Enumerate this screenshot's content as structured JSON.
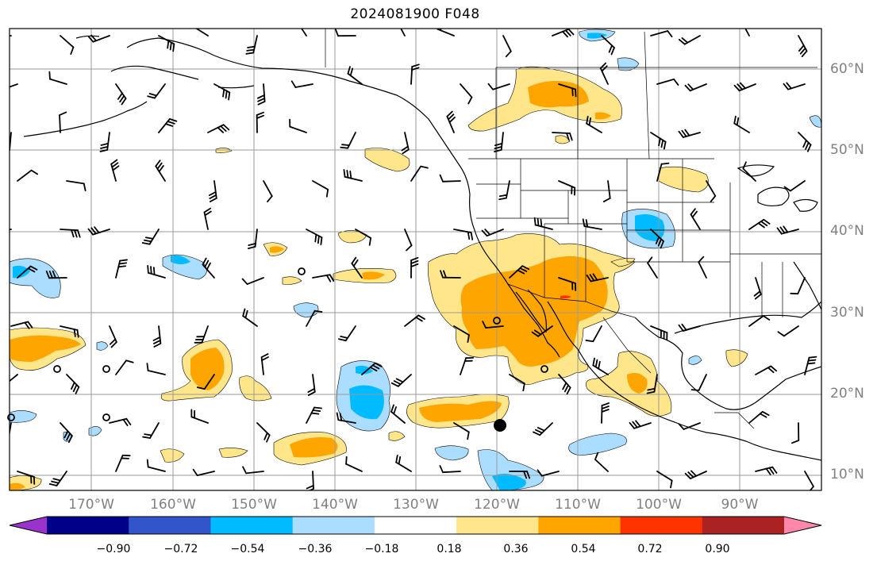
{
  "title": "2024081900 F048",
  "lat_labels": [
    "60°N",
    "50°N",
    "40°N",
    "30°N",
    "20°N",
    "10°N"
  ],
  "lon_labels": [
    "170°W",
    "160°W",
    "150°W",
    "140°W",
    "130°W",
    "120°W",
    "110°W",
    "100°W",
    "90°W"
  ],
  "colorbar": {
    "tick_labels": [
      "−0.90",
      "−0.72",
      "−0.54",
      "−0.36",
      "−0.18",
      "0.18",
      "0.36",
      "0.54",
      "0.72",
      "0.90"
    ],
    "colors": [
      "#9933cc",
      "#000088",
      "#3355cc",
      "#00bbff",
      "#aaddff",
      "#ffffff",
      "#ffe68a",
      "#ffa500",
      "#ff3300",
      "#aa2222",
      "#ff88aa"
    ]
  },
  "colors": {
    "light_blue": "#aaddff",
    "blue": "#00bbff",
    "light_yellow": "#ffe68a",
    "orange": "#ffa500",
    "red": "#ff3300",
    "grid": "#9a9a9a",
    "coast": "#000000"
  }
}
